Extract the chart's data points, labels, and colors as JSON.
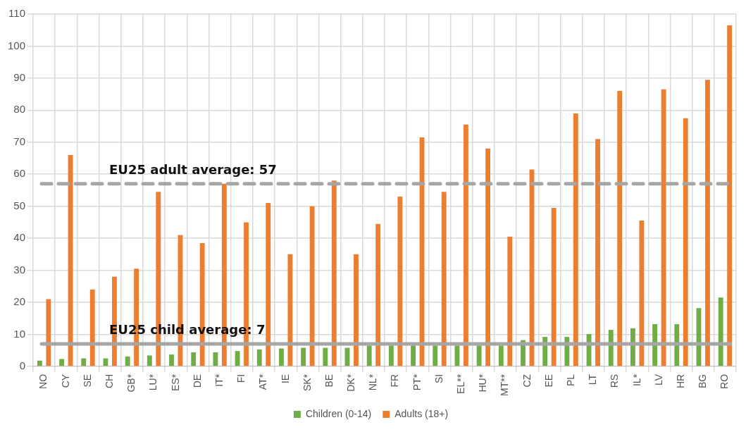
{
  "chart_data": {
    "type": "bar",
    "categories": [
      "NO",
      "CY",
      "SE",
      "CH",
      "GB*",
      "LU*",
      "ES*",
      "DE",
      "IT*",
      "FI",
      "AT*",
      "IE",
      "SK*",
      "BE",
      "DK*",
      "NL*",
      "FR",
      "PT*",
      "SI",
      "EL**",
      "HU*",
      "MT**",
      "CZ",
      "EE",
      "PL",
      "LT",
      "RS",
      "IL*",
      "LV",
      "HR",
      "BG",
      "RO"
    ],
    "series": [
      {
        "name": "Children (0-14)",
        "color": "#70ad47",
        "values": [
          1.8,
          2.3,
          2.5,
          2.5,
          3.1,
          3.4,
          3.7,
          4.4,
          4.4,
          4.8,
          5.3,
          5.6,
          5.8,
          5.8,
          5.8,
          6.5,
          6.5,
          6.5,
          6.5,
          6.5,
          6.5,
          6.5,
          8.2,
          9.2,
          9.2,
          10.1,
          11.4,
          11.9,
          13.2,
          13.2,
          18.2,
          21.5
        ]
      },
      {
        "name": "Adults (18+)",
        "color": "#ed7d31",
        "values": [
          21,
          66,
          24,
          28,
          30.5,
          54.5,
          41,
          38.5,
          57,
          45,
          51,
          35,
          50,
          58,
          35,
          44.5,
          53,
          71.5,
          54.5,
          75.5,
          68,
          40.5,
          61.5,
          49.5,
          79,
          71,
          86,
          45.5,
          86.5,
          77.5,
          89.5,
          106.5
        ]
      }
    ],
    "ylim": [
      0,
      110
    ],
    "yticks": [
      0,
      10,
      20,
      30,
      40,
      50,
      60,
      70,
      80,
      90,
      100,
      110
    ],
    "grid": true,
    "legend": "bottom",
    "ref_lines": [
      {
        "axis": "y",
        "value": 57,
        "label": "EU25 adult average: 57",
        "color": "#a6a6a6",
        "line_style": "dashed"
      },
      {
        "axis": "y",
        "value": 7,
        "label": "EU25 child average: 7",
        "color": "#a6a6a6",
        "line_style": "solid"
      }
    ]
  }
}
